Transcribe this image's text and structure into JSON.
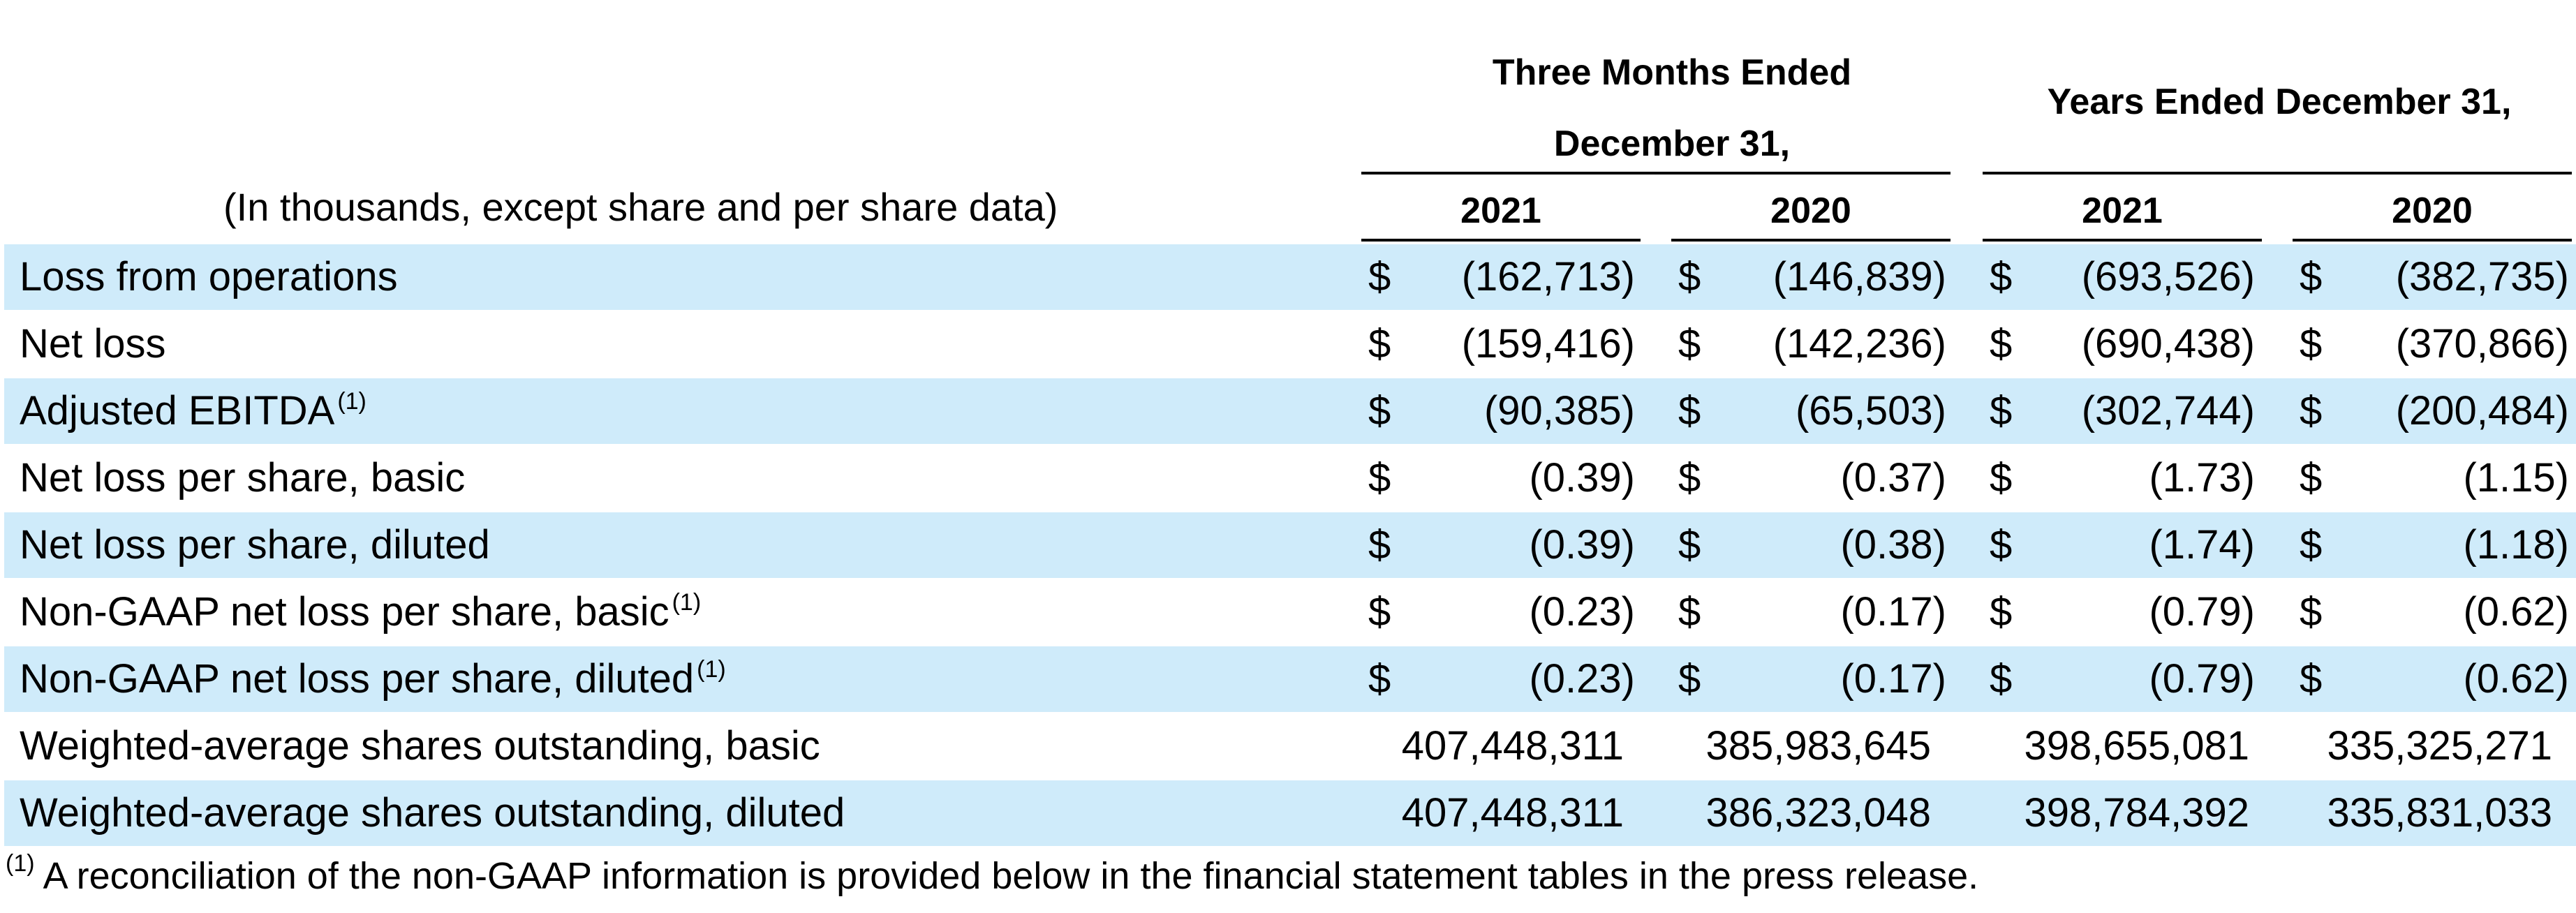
{
  "header": {
    "units_label": "(In thousands, except share and per share data)",
    "group_three_months": [
      "Three Months Ended",
      "December 31,"
    ],
    "group_years": "Years Ended December 31,",
    "years": [
      "2021",
      "2020",
      "2021",
      "2020"
    ]
  },
  "rows": [
    {
      "label": "Loss from operations",
      "sup": "",
      "dollar": "$",
      "values": [
        "(162,713)",
        "(146,839)",
        "(693,526)",
        "(382,735)"
      ],
      "shaded": true
    },
    {
      "label": "Net loss",
      "sup": "",
      "dollar": "$",
      "values": [
        "(159,416)",
        "(142,236)",
        "(690,438)",
        "(370,866)"
      ],
      "shaded": false
    },
    {
      "label": "Adjusted EBITDA",
      "sup": "(1)",
      "dollar": "$",
      "values": [
        "(90,385)",
        "(65,503)",
        "(302,744)",
        "(200,484)"
      ],
      "shaded": true
    },
    {
      "label": "Net loss per share, basic",
      "sup": "",
      "dollar": "$",
      "values": [
        "(0.39)",
        "(0.37)",
        "(1.73)",
        "(1.15)"
      ],
      "shaded": false
    },
    {
      "label": "Net loss per share, diluted",
      "sup": "",
      "dollar": "$",
      "values": [
        "(0.39)",
        "(0.38)",
        "(1.74)",
        "(1.18)"
      ],
      "shaded": true
    },
    {
      "label": "Non-GAAP net loss per share, basic",
      "sup": "(1)",
      "dollar": "$",
      "values": [
        "(0.23)",
        "(0.17)",
        "(0.79)",
        "(0.62)"
      ],
      "shaded": false
    },
    {
      "label": "Non-GAAP net loss per share, diluted",
      "sup": "(1)",
      "dollar": "$",
      "values": [
        "(0.23)",
        "(0.17)",
        "(0.79)",
        "(0.62)"
      ],
      "shaded": true
    },
    {
      "label": "Weighted-average shares outstanding, basic",
      "sup": "",
      "dollar": "",
      "values": [
        "407,448,311",
        "385,983,645",
        "398,655,081",
        "335,325,271"
      ],
      "shaded": false
    },
    {
      "label": "Weighted-average shares outstanding, diluted",
      "sup": "",
      "dollar": "",
      "values": [
        "407,448,311",
        "386,323,048",
        "398,784,392",
        "335,831,033"
      ],
      "shaded": true
    }
  ],
  "footnote": {
    "marker": "(1)",
    "text": "A reconciliation of the non-GAAP information is provided below in the financial statement tables in the press release."
  }
}
